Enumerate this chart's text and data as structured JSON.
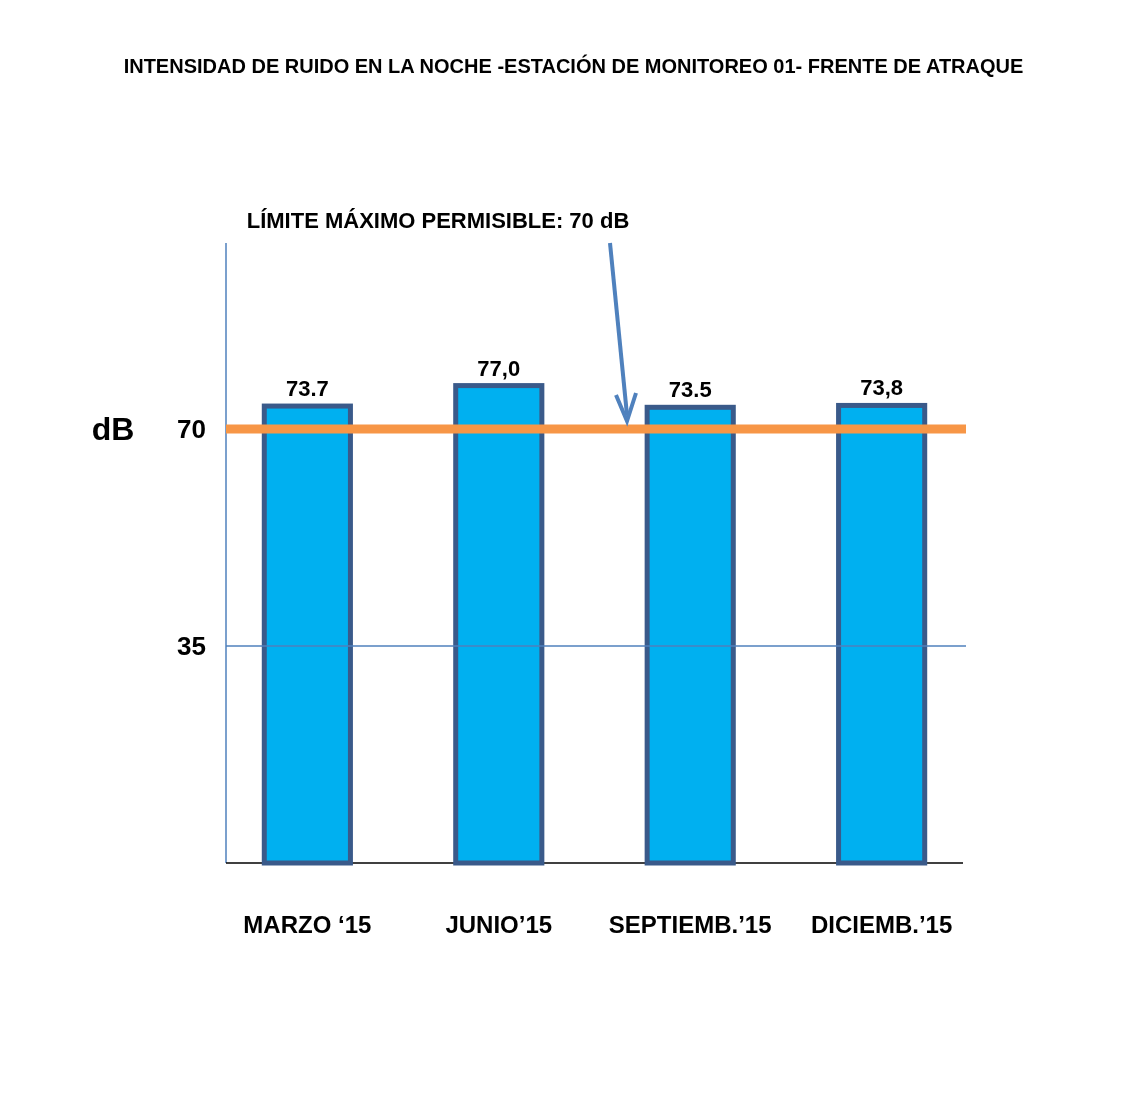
{
  "chart_data": {
    "type": "bar",
    "title": "INTENSIDAD DE RUIDO EN LA NOCHE -ESTACIÓN DE MONITOREO 01- FRENTE DE ATRAQUE",
    "ylabel": "dB",
    "categories": [
      "MARZO ‘15",
      "JUNIO’15",
      "SEPTIEMB.’15",
      "DICIEMB.’15"
    ],
    "values": [
      73.7,
      77.0,
      73.5,
      73.8
    ],
    "value_labels": [
      "73.7",
      "77,0",
      "73.5",
      "73,8"
    ],
    "color": "#00b0f0",
    "ylim": [
      0,
      100
    ],
    "yticks": [
      35,
      70
    ],
    "annotations": [
      "LÍMITE MÁXIMO PERMISIBLE: 70 dB"
    ],
    "ref_lines": [
      {
        "axis": "y",
        "value": 70,
        "color": "#f79646"
      },
      {
        "axis": "y",
        "value": 35,
        "color": "#4f81bd"
      }
    ]
  }
}
